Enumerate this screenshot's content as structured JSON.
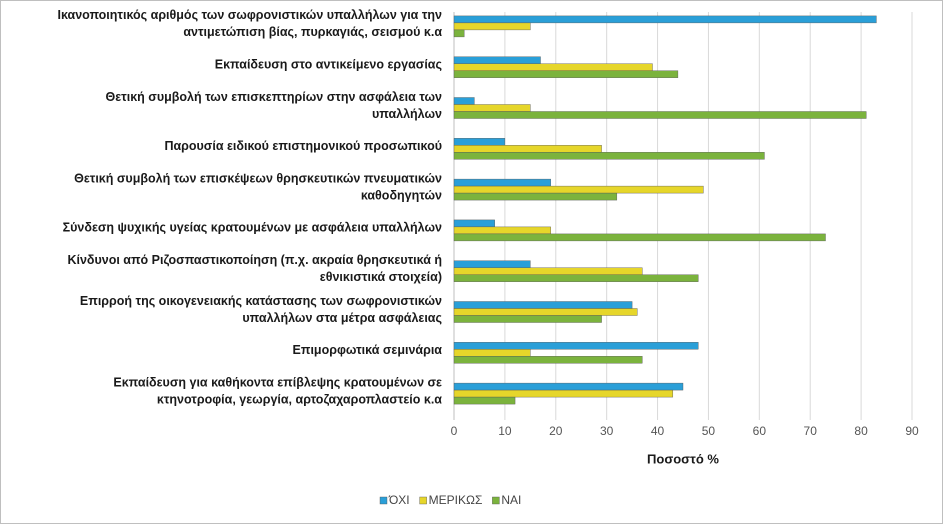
{
  "chart_data": {
    "type": "barh",
    "categories": [
      [
        "Ικανοποιητικός αριθμός των σωφρονιστικών υπαλλήλων για την",
        "αντιμετώπιση βίας, πυρκαγιάς, σεισμού κ.α"
      ],
      [
        "Εκπαίδευση στο αντικείμενο εργασίας"
      ],
      [
        "Θετική συμβολή των επισκεπτηρίων στην ασφάλεια των",
        "υπαλλήλων"
      ],
      [
        "Παρουσία ειδικού επιστημονικού προσωπικού"
      ],
      [
        "Θετική συμβολή των επισκέψεων θρησκευτικών πνευματικών",
        "καθοδηγητών"
      ],
      [
        "Σύνδεση ψυχικής υγείας κρατουμένων με ασφάλεια υπαλλήλων"
      ],
      [
        "Κίνδυνοι από Ριζοσπαστικοποίηση (π.χ. ακραία θρησκευτικά ή",
        "εθνικιστικά στοιχεία)"
      ],
      [
        "Επιρροή της οικογενειακής κατάστασης των σωφρονιστικών",
        "υπαλλήλων στα μέτρα ασφάλειας"
      ],
      [
        "Επιμορφωτικά σεμινάρια"
      ],
      [
        "Εκπαίδευση για καθήκοντα επίβλεψης κρατουμένων σε",
        "κτηνοτροφία, γεωργία, αρτοζαχαροπλαστείο κ.α"
      ]
    ],
    "series": [
      {
        "name": "ΌΧΙ",
        "color": "#2a9fd8",
        "values": [
          83,
          17,
          4,
          10,
          19,
          8,
          15,
          35,
          48,
          45
        ]
      },
      {
        "name": "ΜΕΡΙΚΩΣ",
        "color": "#e6d62a",
        "values": [
          15,
          39,
          15,
          29,
          49,
          19,
          37,
          36,
          15,
          43
        ]
      },
      {
        "name": "ΝΑΙ",
        "color": "#7bb33d",
        "values": [
          2,
          44,
          81,
          61,
          32,
          73,
          48,
          29,
          37,
          12
        ]
      }
    ],
    "xlabel": "Ποσοστό %",
    "xlim": [
      0,
      90
    ],
    "xticks": [
      0,
      10,
      20,
      30,
      40,
      50,
      60,
      70,
      80,
      90
    ],
    "grid": true
  }
}
